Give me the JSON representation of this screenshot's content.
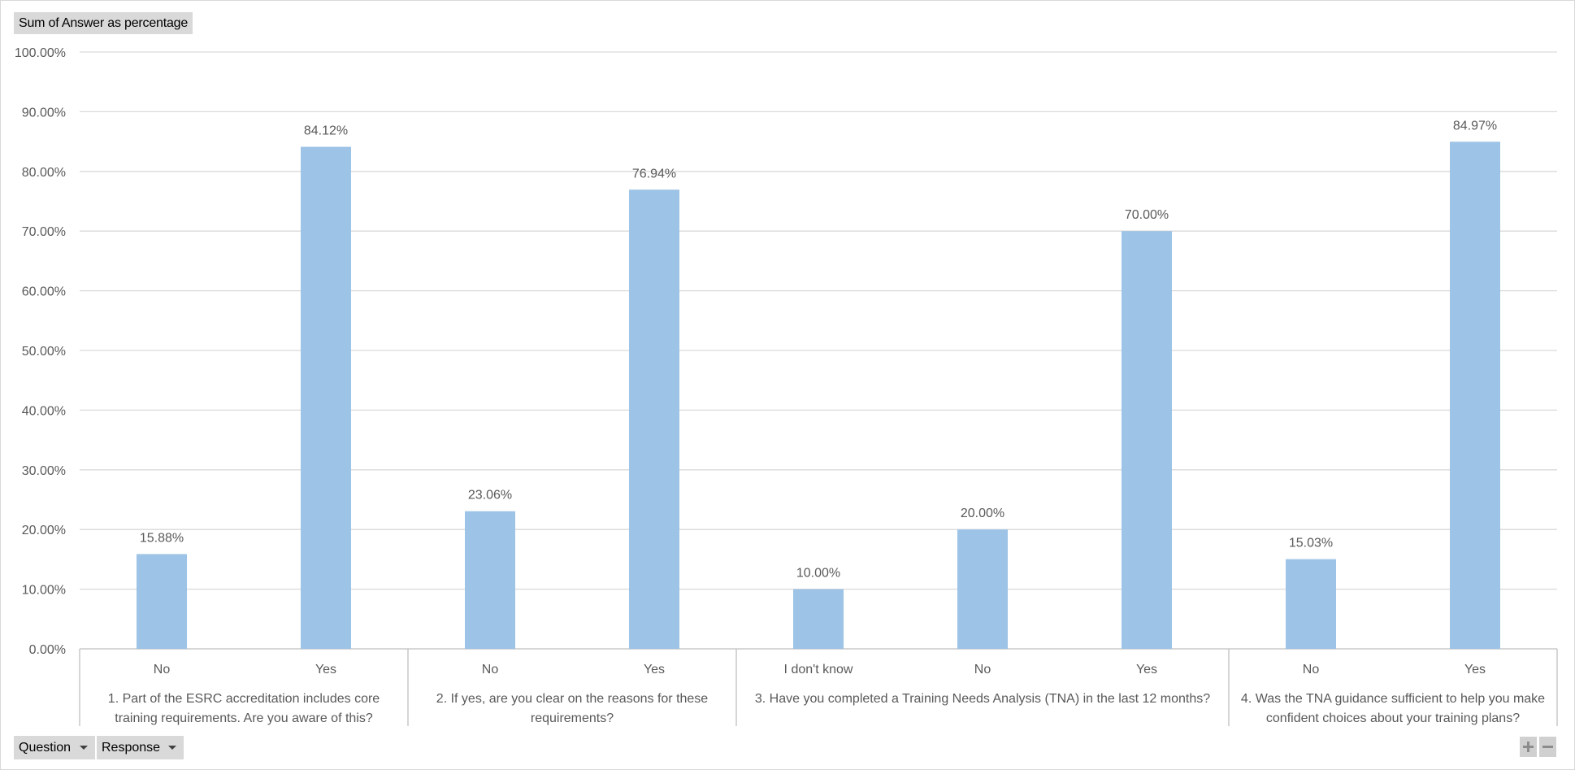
{
  "field_value_label": "Sum of Answer as percentage",
  "filters": {
    "question_label": "Question",
    "response_label": "Response"
  },
  "colors": {
    "bar": "#9dc3e6",
    "gridline": "#d9d9d9",
    "axis": "#bfbfbf",
    "text": "#595959",
    "button_bg": "#d9d9d9"
  },
  "zoom_icons": [
    "plus-icon",
    "minus-icon"
  ],
  "chart_data": {
    "type": "bar",
    "ylim": [
      0,
      100
    ],
    "ytick_step": 10,
    "ytick_format": "percent-2dp",
    "grid": true,
    "legend": "none",
    "groups": [
      {
        "label": "1. Part of the ESRC accreditation includes core training requirements. Are you aware of this?",
        "label_lines": [
          "1. Part of the ESRC accreditation includes core",
          "training requirements. Are you aware of this?"
        ],
        "categories": [
          "No",
          "Yes"
        ],
        "values": [
          15.88,
          84.12
        ],
        "data_labels": [
          "15.88%",
          "84.12%"
        ]
      },
      {
        "label": "2. If yes, are you clear on the reasons for these requirements?",
        "label_lines": [
          "2. If yes, are you clear on the reasons for these",
          "requirements?"
        ],
        "categories": [
          "No",
          "Yes"
        ],
        "values": [
          23.06,
          76.94
        ],
        "data_labels": [
          "23.06%",
          "76.94%"
        ]
      },
      {
        "label": "3. Have you completed a Training Needs Analysis (TNA) in the last 12 months?",
        "label_lines": [
          "3. Have you completed a Training Needs Analysis (TNA) in the last 12 months?"
        ],
        "categories": [
          "I don't know",
          "No",
          "Yes"
        ],
        "values": [
          10.0,
          20.0,
          70.0
        ],
        "data_labels": [
          "10.00%",
          "20.00%",
          "70.00%"
        ]
      },
      {
        "label": "4. Was the TNA guidance sufficient to help you make confident choices about your training plans?",
        "label_lines": [
          "4. Was the TNA guidance sufficient to help you make",
          "confident choices about your training plans?"
        ],
        "categories": [
          "No",
          "Yes"
        ],
        "values": [
          15.03,
          84.97
        ],
        "data_labels": [
          "15.03%",
          "84.97%"
        ]
      }
    ]
  }
}
